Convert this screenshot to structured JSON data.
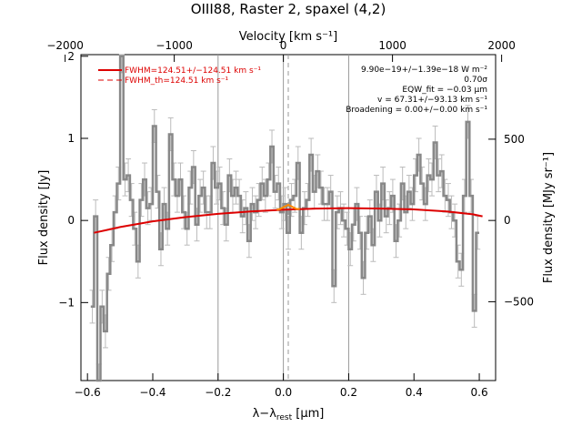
{
  "chart_data": {
    "type": "line",
    "title": "OIII88, Raster 2, spaxel (4,2)",
    "xlabel": "λ−λ_rest [μm]",
    "xlabel_main": "λ−λ",
    "xlabel_sub": "rest",
    "xlabel_unit": " [μm]",
    "ylabel": "Flux density [Jy]",
    "top_xlabel": "Velocity [km s⁻¹]",
    "right_ylabel": "Flux density [MJy sr⁻¹]",
    "xlim": [
      -0.62,
      0.65
    ],
    "ylim": [
      -1.95,
      2.02
    ],
    "xticks": [
      -0.6,
      -0.4,
      -0.2,
      0.0,
      0.2,
      0.4,
      0.6
    ],
    "xtick_labels": [
      "−0.6",
      "−0.4",
      "−0.2",
      "0.0",
      "0.2",
      "0.4",
      "0.6"
    ],
    "yticks": [
      -1,
      0,
      1,
      2
    ],
    "ytick_labels": [
      "−1",
      "0",
      "1",
      "2"
    ],
    "top_ticks": [
      -0.6684,
      -0.3342,
      0.0,
      0.3342,
      0.6684
    ],
    "top_tick_labels": [
      "−2000",
      "−1000",
      "0",
      "1000",
      "2000"
    ],
    "right_ticks": [
      -0.99,
      0,
      0.99
    ],
    "right_tick_labels": [
      "−500",
      "0",
      "500"
    ],
    "vlines_solid": [
      -0.2,
      0.2
    ],
    "vline_center": 0.0,
    "vline_dashed": 0.015,
    "legend": [
      {
        "label": "FWHM=124.51+/−124.51 km s⁻¹",
        "style": "solid"
      },
      {
        "label": "FWHM_th=124.51 km s⁻¹",
        "style": "dashed"
      }
    ],
    "annotations": [
      "9.90e−19+/−1.39e−18 W m⁻²",
      "0.70σ",
      "EQW_fit = −0.03 μm",
      "v = 67.31+/−93.13 km s⁻¹",
      "Broadening = 0.00+/−0.00 km s⁻¹"
    ],
    "series": [
      {
        "name": "data",
        "x": [
          -0.585,
          -0.575,
          -0.565,
          -0.555,
          -0.545,
          -0.535,
          -0.525,
          -0.515,
          -0.505,
          -0.495,
          -0.485,
          -0.475,
          -0.465,
          -0.455,
          -0.445,
          -0.435,
          -0.425,
          -0.415,
          -0.405,
          -0.395,
          -0.385,
          -0.375,
          -0.365,
          -0.355,
          -0.345,
          -0.335,
          -0.325,
          -0.315,
          -0.305,
          -0.295,
          -0.285,
          -0.275,
          -0.265,
          -0.255,
          -0.245,
          -0.235,
          -0.225,
          -0.215,
          -0.205,
          -0.195,
          -0.185,
          -0.175,
          -0.165,
          -0.155,
          -0.145,
          -0.135,
          -0.125,
          -0.115,
          -0.105,
          -0.095,
          -0.085,
          -0.075,
          -0.065,
          -0.055,
          -0.045,
          -0.035,
          -0.025,
          -0.015,
          -0.005,
          0.005,
          0.015,
          0.025,
          0.035,
          0.045,
          0.055,
          0.065,
          0.075,
          0.085,
          0.095,
          0.105,
          0.115,
          0.125,
          0.135,
          0.145,
          0.155,
          0.165,
          0.175,
          0.185,
          0.195,
          0.205,
          0.215,
          0.225,
          0.235,
          0.245,
          0.255,
          0.265,
          0.275,
          0.285,
          0.295,
          0.305,
          0.315,
          0.325,
          0.335,
          0.345,
          0.355,
          0.365,
          0.375,
          0.385,
          0.395,
          0.405,
          0.415,
          0.425,
          0.435,
          0.445,
          0.455,
          0.465,
          0.475,
          0.485,
          0.495,
          0.505,
          0.515,
          0.525,
          0.535,
          0.545,
          0.555,
          0.565,
          0.575,
          0.585,
          0.595
        ],
        "y": [
          -1.05,
          0.05,
          -1.95,
          -1.05,
          -1.35,
          -0.65,
          -0.3,
          0.1,
          0.45,
          2.0,
          0.5,
          0.55,
          0.25,
          -0.1,
          -0.5,
          0.25,
          0.5,
          0.15,
          0.2,
          1.15,
          0.35,
          -0.35,
          0.2,
          -0.1,
          1.05,
          0.5,
          0.3,
          0.5,
          0.1,
          -0.1,
          0.4,
          0.65,
          -0.05,
          0.3,
          0.4,
          0.1,
          0.1,
          0.7,
          0.4,
          0.45,
          0.15,
          -0.05,
          0.55,
          0.3,
          0.4,
          0.3,
          0.05,
          0.15,
          -0.25,
          0.2,
          0.1,
          0.25,
          0.45,
          0.3,
          0.5,
          0.9,
          0.35,
          0.45,
          0.1,
          0.2,
          -0.15,
          0.25,
          0.3,
          0.7,
          -0.15,
          0.15,
          0.25,
          0.8,
          0.35,
          0.6,
          0.4,
          0.2,
          0.2,
          0.35,
          -0.8,
          0.1,
          0.15,
          0.0,
          -0.1,
          -0.35,
          -0.05,
          0.2,
          -0.15,
          -0.7,
          -0.15,
          0.05,
          -0.3,
          0.35,
          0.0,
          0.45,
          0.05,
          0.15,
          0.3,
          -0.25,
          0.0,
          0.45,
          0.1,
          0.35,
          0.2,
          0.55,
          0.8,
          0.45,
          0.2,
          0.55,
          0.5,
          0.95,
          0.55,
          0.6,
          0.3,
          0.25,
          0.1,
          0.0,
          -0.5,
          -0.6,
          0.3,
          1.2,
          0.3,
          -1.1,
          -0.15
        ],
        "yerr": 0.2
      },
      {
        "name": "fit",
        "x": [
          -0.58,
          -0.5,
          -0.4,
          -0.3,
          -0.2,
          -0.1,
          0.0,
          0.1,
          0.2,
          0.3,
          0.4,
          0.5,
          0.58,
          0.61
        ],
        "y": [
          -0.15,
          -0.08,
          -0.01,
          0.04,
          0.08,
          0.11,
          0.13,
          0.145,
          0.15,
          0.145,
          0.135,
          0.11,
          0.075,
          0.05
        ]
      },
      {
        "name": "line_component",
        "x": [
          -0.02,
          -0.01,
          0.0,
          0.01,
          0.015,
          0.02,
          0.03,
          0.04,
          0.05
        ],
        "y": [
          0.13,
          0.14,
          0.16,
          0.18,
          0.19,
          0.18,
          0.16,
          0.14,
          0.14
        ]
      }
    ],
    "colors": {
      "data": "#888888",
      "fit": "#dd0000",
      "component": "#ff8800",
      "errorbar": "#bbbbbb",
      "vline": "#999999"
    }
  }
}
